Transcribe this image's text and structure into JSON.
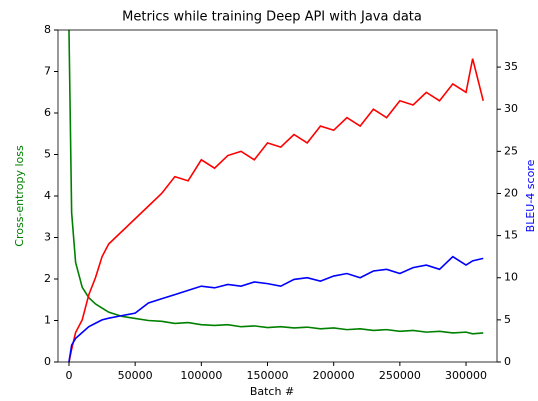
{
  "chart_data": {
    "type": "line",
    "title": "Metrics while training Deep API with Java data",
    "xlabel": "Batch #",
    "ylabel": "Cross-entropy loss",
    "y2label": "BLEU-4 score",
    "x": [
      0,
      2000,
      5000,
      10000,
      15000,
      20000,
      25000,
      30000,
      40000,
      50000,
      60000,
      70000,
      80000,
      90000,
      100000,
      110000,
      120000,
      130000,
      140000,
      150000,
      160000,
      170000,
      180000,
      190000,
      200000,
      210000,
      220000,
      230000,
      240000,
      250000,
      260000,
      270000,
      280000,
      290000,
      300000,
      305000,
      313000
    ],
    "series": [
      {
        "color": "#008000",
        "axis": "y",
        "values": [
          8,
          3.6,
          2.4,
          1.8,
          1.55,
          1.4,
          1.3,
          1.2,
          1.1,
          1.05,
          1.0,
          0.98,
          0.93,
          0.95,
          0.9,
          0.88,
          0.9,
          0.85,
          0.87,
          0.83,
          0.85,
          0.82,
          0.84,
          0.8,
          0.82,
          0.78,
          0.8,
          0.76,
          0.78,
          0.74,
          0.76,
          0.72,
          0.74,
          0.7,
          0.72,
          0.68,
          0.7
        ]
      },
      {
        "color": "#ff0000",
        "axis": "y2",
        "values": [
          0,
          1.5,
          3.5,
          5,
          8,
          10,
          12.5,
          14,
          15.5,
          17,
          18.5,
          20,
          22,
          21.5,
          24,
          23,
          24.5,
          25,
          24,
          26,
          25.5,
          27,
          26,
          28,
          27.5,
          29,
          28,
          30,
          29,
          31,
          30.5,
          32,
          31,
          33,
          32,
          36,
          31
        ]
      },
      {
        "color": "#0000ff",
        "axis": "y2",
        "values": [
          0,
          2,
          2.8,
          3.5,
          4.2,
          4.6,
          5,
          5.2,
          5.5,
          5.8,
          7,
          7.5,
          8,
          8.5,
          9,
          8.8,
          9.2,
          9,
          9.5,
          9.3,
          9,
          9.8,
          10,
          9.6,
          10.2,
          10.5,
          10,
          10.8,
          11,
          10.5,
          11.2,
          11.5,
          11,
          12.5,
          11.5,
          12,
          12.3
        ]
      }
    ],
    "xlim": [
      -8300,
      323400
    ],
    "xticks": [
      0,
      50000,
      100000,
      150000,
      200000,
      250000,
      300000
    ],
    "ylim": [
      0,
      8
    ],
    "yticks": [
      0,
      1,
      2,
      3,
      4,
      5,
      6,
      7,
      8
    ],
    "y2lim": [
      0,
      39.4
    ],
    "y2ticks": [
      0,
      5,
      10,
      15,
      20,
      25,
      30,
      35
    ]
  }
}
